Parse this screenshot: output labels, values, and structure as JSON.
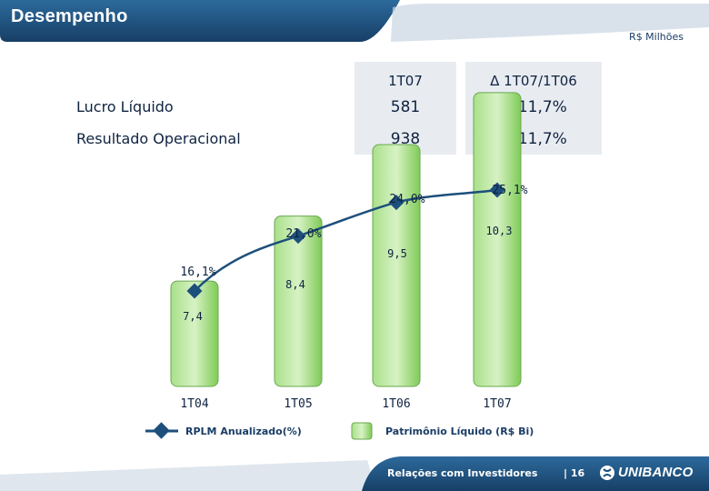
{
  "header": {
    "title": "Desempenho",
    "units": "R$ Milhões"
  },
  "table": {
    "columns": [
      "1T07",
      "Δ 1T07/1T06"
    ],
    "rows": [
      {
        "label": "Lucro Líquido",
        "value": "581",
        "delta": "+ 11,7%"
      },
      {
        "label": "Resultado Operacional",
        "value": "938",
        "delta": "+ 11,7%"
      }
    ]
  },
  "chart_data": {
    "type": "bar+line",
    "categories": [
      "1T04",
      "1T05",
      "1T06",
      "1T07"
    ],
    "series": [
      {
        "name": "Patrimônio Líquido (R$ Bi)",
        "kind": "bar",
        "values": [
          7.4,
          8.4,
          9.5,
          10.3
        ],
        "labels": [
          "7,4",
          "8,4",
          "9,5",
          "10,3"
        ],
        "color": "#8fd36a"
      },
      {
        "name": "RPLM Anualizado(%)",
        "kind": "line",
        "values": [
          16.1,
          21.0,
          24.0,
          25.1
        ],
        "labels": [
          "16,1%",
          "21,0%",
          "24,0%",
          "25,1%"
        ],
        "color": "#1d4f7c"
      }
    ]
  },
  "legend": {
    "line_label": "RPLM Anualizado(%)",
    "bar_label": "Patrimônio Líquido (R$ Bi)"
  },
  "footer": {
    "text": "Relações com Investidores",
    "page": "| 16",
    "brand": "UNIBANCO"
  },
  "colors": {
    "header_blue": "#1d5a8c",
    "footer_blue": "#1d4f7c",
    "bar_green": "#8fd36a",
    "line_blue": "#1d4f7c"
  }
}
